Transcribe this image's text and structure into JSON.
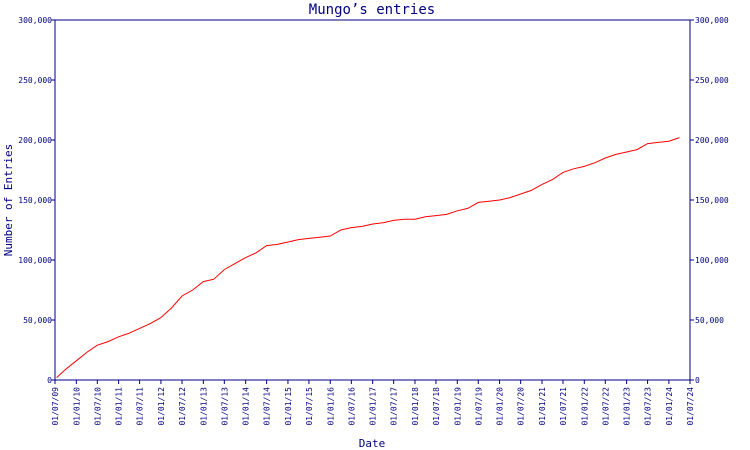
{
  "chart_data": {
    "type": "line",
    "title": "Mungo’s entries",
    "xlabel": "Date",
    "ylabel": "Number of Entries",
    "ylim": [
      0,
      300000
    ],
    "y_ticks": [
      0,
      50000,
      100000,
      150000,
      200000,
      250000,
      300000
    ],
    "y_tick_labels": [
      "0",
      "50,000",
      "100,000",
      "150,000",
      "200,000",
      "250,000",
      "300,000"
    ],
    "x_tick_labels": [
      "01/07/09",
      "01/01/10",
      "01/07/10",
      "01/01/11",
      "01/07/11",
      "01/01/12",
      "01/07/12",
      "01/01/13",
      "01/07/13",
      "01/01/14",
      "01/07/14",
      "01/01/15",
      "01/07/15",
      "01/01/16",
      "01/07/16",
      "01/01/17",
      "01/07/17",
      "01/01/18",
      "01/07/18",
      "01/01/19",
      "01/07/19",
      "01/01/20",
      "01/07/20",
      "01/01/21",
      "01/07/21",
      "01/01/22",
      "01/07/22",
      "01/01/23",
      "01/07/23",
      "01/01/24",
      "01/07/24"
    ],
    "grid": false,
    "colors": {
      "line": "#ff0000",
      "axis": "#000080",
      "text": "#000080"
    },
    "series": [
      {
        "x": [
          "2009-07-15",
          "2009-10-01",
          "2010-01-01",
          "2010-04-01",
          "2010-07-01",
          "2010-10-01",
          "2011-01-01",
          "2011-04-01",
          "2011-07-01",
          "2011-10-01",
          "2012-01-01",
          "2012-04-01",
          "2012-07-01",
          "2012-10-01",
          "2013-01-01",
          "2013-04-01",
          "2013-07-01",
          "2013-10-01",
          "2014-01-01",
          "2014-04-01",
          "2014-07-01",
          "2014-10-01",
          "2015-01-01",
          "2015-04-01",
          "2015-07-01",
          "2015-10-01",
          "2016-01-01",
          "2016-04-01",
          "2016-07-01",
          "2016-10-01",
          "2017-01-01",
          "2017-04-01",
          "2017-07-01",
          "2017-10-01",
          "2018-01-01",
          "2018-04-01",
          "2018-07-01",
          "2018-10-01",
          "2019-01-01",
          "2019-04-01",
          "2019-07-01",
          "2019-10-01",
          "2020-01-01",
          "2020-04-01",
          "2020-07-01",
          "2020-10-01",
          "2021-01-01",
          "2021-04-01",
          "2021-07-01",
          "2021-10-01",
          "2022-01-01",
          "2022-04-01",
          "2022-07-01",
          "2022-10-01",
          "2023-01-01",
          "2023-04-01",
          "2023-07-01",
          "2023-10-01",
          "2024-01-01",
          "2024-04-01"
        ],
        "values": [
          2000,
          9000,
          16000,
          23000,
          29000,
          32000,
          36000,
          39000,
          43000,
          47000,
          52000,
          60000,
          70000,
          75000,
          82000,
          84000,
          92000,
          97000,
          102000,
          106000,
          112000,
          113000,
          115000,
          117000,
          118000,
          119000,
          120000,
          125000,
          127000,
          128000,
          130000,
          131000,
          133000,
          134000,
          134000,
          136000,
          137000,
          138000,
          141000,
          143000,
          148000,
          149000,
          150000,
          152000,
          155000,
          158000,
          163000,
          167000,
          173000,
          176000,
          178000,
          181000,
          185000,
          188000,
          190000,
          192000,
          197000,
          198000,
          199000,
          202000
        ]
      }
    ]
  }
}
